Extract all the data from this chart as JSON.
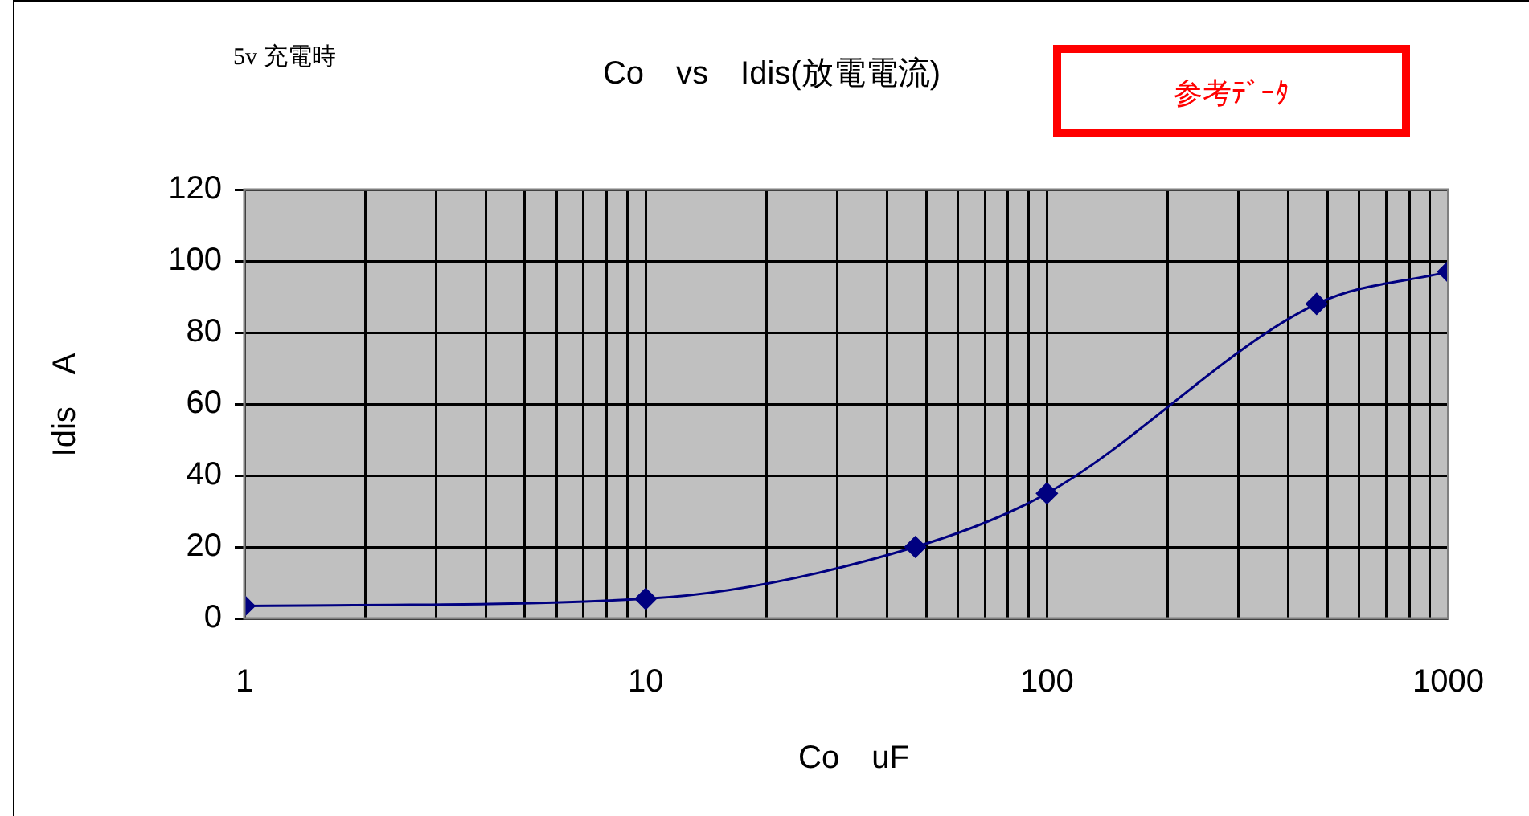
{
  "chart_data": {
    "type": "line",
    "title": "Co　vs　Idis(放電電流)",
    "xlabel": "Co　uF",
    "ylabel": "Idis　A",
    "annotations": [
      "5v 充電時",
      "参考ﾃﾞｰﾀ"
    ],
    "x": [
      1,
      10,
      47,
      100,
      470,
      1000
    ],
    "values": [
      3.5,
      5.5,
      20,
      35,
      88,
      97
    ],
    "color": "#000080",
    "marker": "diamond",
    "line_style": "solid",
    "log": "x",
    "grid": true,
    "legend": false,
    "xlim": [
      1,
      1000
    ],
    "xticks": [
      1,
      {
        "value": 2,
        "label": null
      },
      {
        "value": 3,
        "label": null
      },
      {
        "value": 4,
        "label": null
      },
      {
        "value": 5,
        "label": null
      },
      {
        "value": 6,
        "label": null
      },
      {
        "value": 7,
        "label": null
      },
      {
        "value": 8,
        "label": null
      },
      {
        "value": 9,
        "label": null
      },
      10,
      {
        "value": 20,
        "label": null
      },
      {
        "value": 30,
        "label": null
      },
      {
        "value": 40,
        "label": null
      },
      {
        "value": 50,
        "label": null
      },
      {
        "value": 60,
        "label": null
      },
      {
        "value": 70,
        "label": null
      },
      {
        "value": 80,
        "label": null
      },
      {
        "value": 90,
        "label": null
      },
      100,
      {
        "value": 200,
        "label": null
      },
      {
        "value": 300,
        "label": null
      },
      {
        "value": 400,
        "label": null
      },
      {
        "value": 500,
        "label": null
      },
      {
        "value": 600,
        "label": null
      },
      {
        "value": 700,
        "label": null
      },
      {
        "value": 800,
        "label": null
      },
      {
        "value": 900,
        "label": null
      },
      1000
    ],
    "ylim": [
      0,
      120
    ],
    "yticks": [
      0,
      20,
      40,
      60,
      80,
      100,
      120
    ]
  }
}
